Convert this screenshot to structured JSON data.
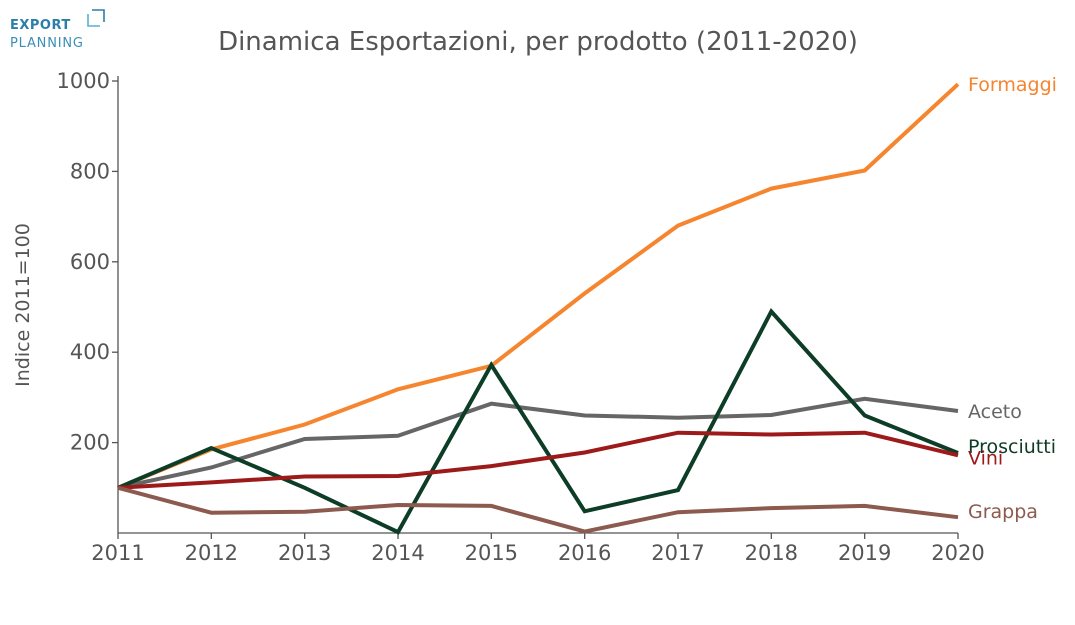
{
  "logo": {
    "line1": "EXPORT",
    "line2": "PLANNING"
  },
  "chart_data": {
    "type": "line",
    "title": "Dinamica Esportazioni, per prodotto (2011-2020)",
    "xlabel": "",
    "ylabel": "Indice 2011=100",
    "x": [
      "2011",
      "2012",
      "2013",
      "2014",
      "2015",
      "2016",
      "2017",
      "2018",
      "2019",
      "2020"
    ],
    "ylim": [
      0,
      1000
    ],
    "yticks": [
      200,
      400,
      600,
      800,
      1000
    ],
    "legend": "direct-labels-right",
    "series": [
      {
        "name": "Formaggi",
        "color": "#f5852e",
        "values": [
          100,
          185,
          240,
          318,
          370,
          530,
          680,
          762,
          802,
          993
        ]
      },
      {
        "name": "Aceto",
        "color": "#666666",
        "values": [
          100,
          145,
          208,
          215,
          286,
          260,
          255,
          261,
          297,
          270
        ]
      },
      {
        "name": "Prosciutti",
        "color": "#0d3d26",
        "values": [
          100,
          188,
          100,
          2,
          372,
          48,
          95,
          490,
          260,
          177
        ]
      },
      {
        "name": "Vini",
        "color": "#9c1a1a",
        "values": [
          100,
          112,
          125,
          126,
          148,
          178,
          222,
          218,
          222,
          172
        ]
      },
      {
        "name": "Grappa",
        "color": "#8c5a4e",
        "values": [
          100,
          45,
          47,
          62,
          60,
          3,
          46,
          55,
          60,
          35
        ]
      }
    ]
  }
}
